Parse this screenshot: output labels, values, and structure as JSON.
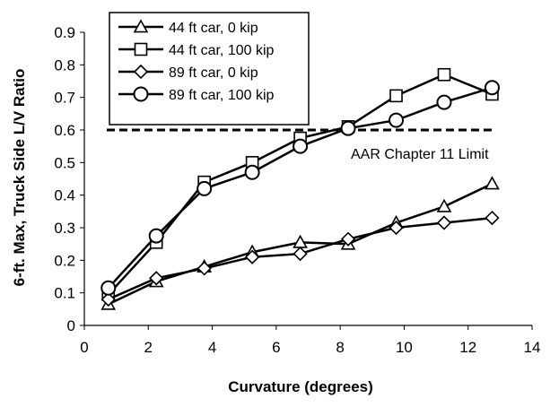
{
  "chart_data": {
    "type": "line",
    "xlabel": "Curvature (degrees)",
    "ylabel": "6-ft. Max, Truck Side L/V Ratio",
    "xlim": [
      0,
      14
    ],
    "ylim": [
      0,
      0.9
    ],
    "xticks": [
      "0",
      "2",
      "4",
      "6",
      "8",
      "10",
      "12",
      "14"
    ],
    "yticks": [
      "0",
      "0.1",
      "0.2",
      "0.3",
      "0.4",
      "0.5",
      "0.6",
      "0.7",
      "0.8",
      "0.9"
    ],
    "grid": false,
    "legend_position": "top-left",
    "series": [
      {
        "name": "44 ft car, 0 kip",
        "marker": "triangle",
        "x": [
          0.75,
          2.25,
          3.75,
          5.25,
          6.75,
          8.25,
          9.75,
          11.25,
          12.75
        ],
        "y": [
          0.065,
          0.135,
          0.18,
          0.225,
          0.255,
          0.25,
          0.315,
          0.365,
          0.435
        ]
      },
      {
        "name": "44 ft car, 100 kip",
        "marker": "square",
        "x": [
          0.75,
          2.25,
          3.75,
          5.25,
          6.75,
          8.25,
          9.75,
          11.25,
          12.75
        ],
        "y": [
          0.095,
          0.255,
          0.44,
          0.5,
          0.575,
          0.61,
          0.705,
          0.77,
          0.71
        ]
      },
      {
        "name": "89 ft car, 0 kip",
        "marker": "diamond",
        "x": [
          0.75,
          2.25,
          3.75,
          5.25,
          6.75,
          8.25,
          9.75,
          11.25,
          12.75
        ],
        "y": [
          0.08,
          0.145,
          0.175,
          0.21,
          0.22,
          0.265,
          0.3,
          0.315,
          0.33
        ]
      },
      {
        "name": "89 ft car, 100 kip",
        "marker": "circle",
        "x": [
          0.75,
          2.25,
          3.75,
          5.25,
          6.75,
          8.25,
          9.75,
          11.25,
          12.75
        ],
        "y": [
          0.115,
          0.275,
          0.42,
          0.47,
          0.55,
          0.605,
          0.63,
          0.685,
          0.73
        ]
      }
    ],
    "reference_line": {
      "label": "AAR Chapter 11 Limit",
      "y": 0.6,
      "x": [
        0.7,
        12.75
      ],
      "style": "dashed"
    }
  }
}
